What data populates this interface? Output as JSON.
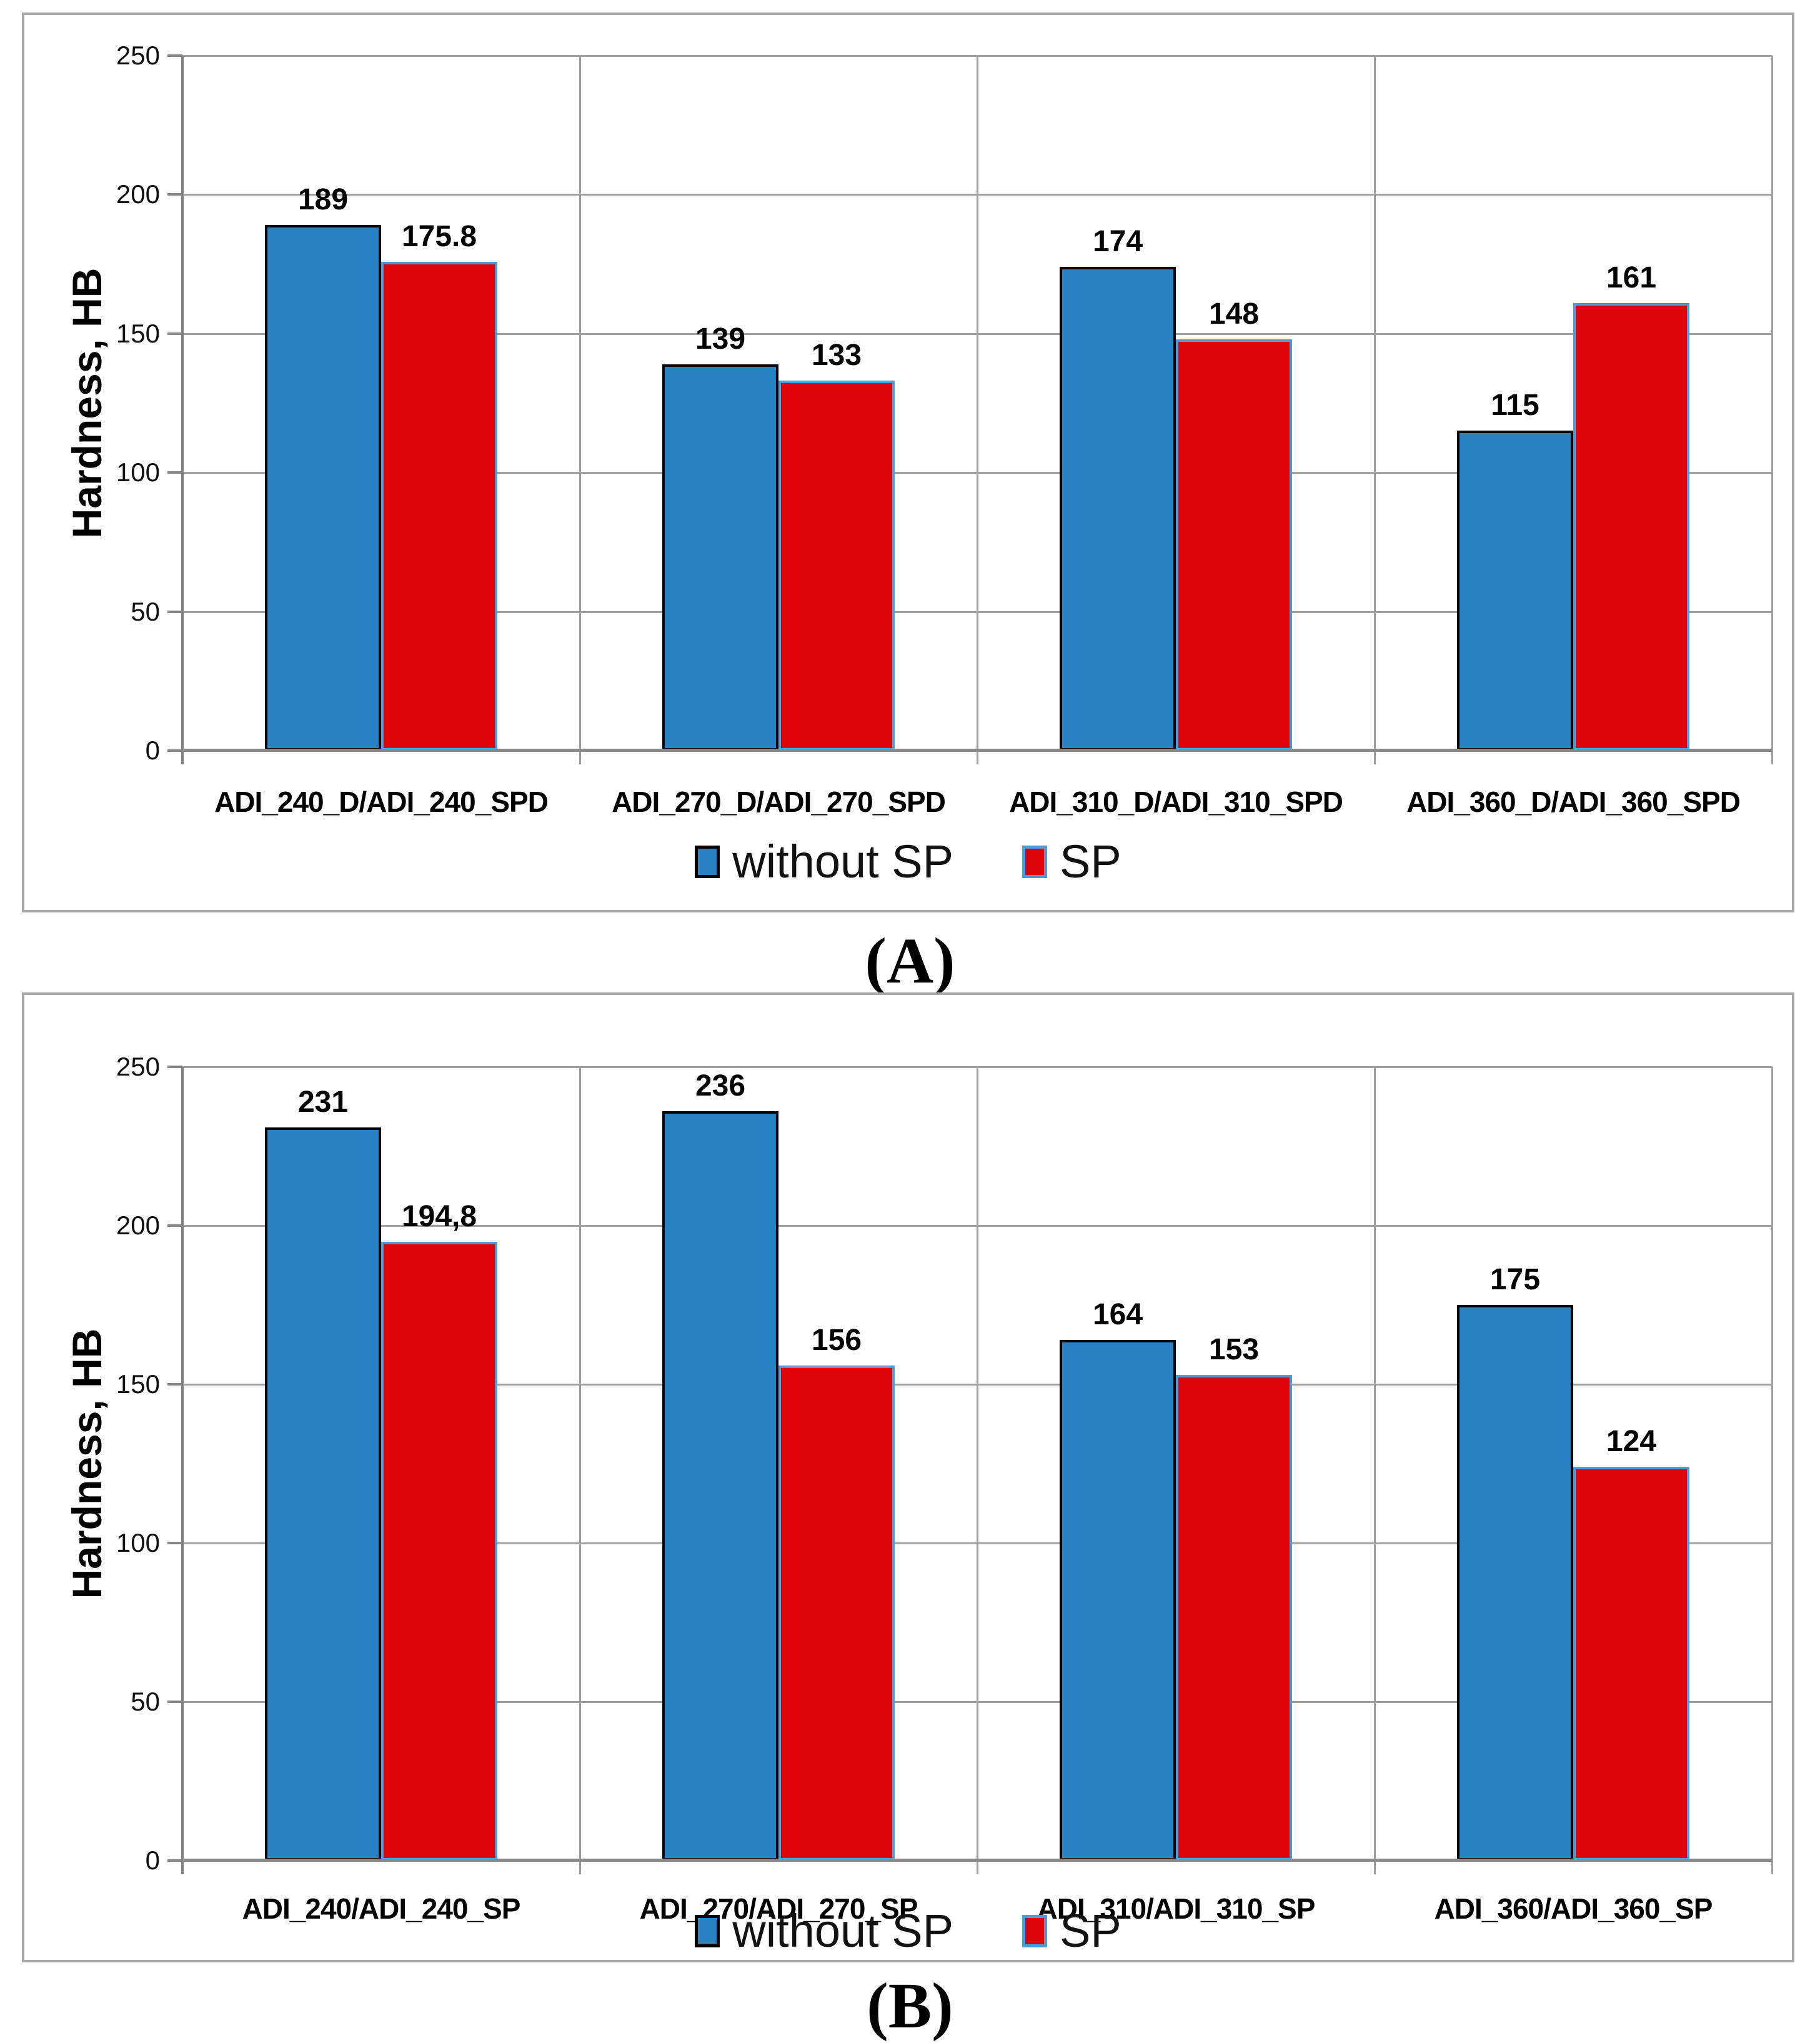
{
  "captions": {
    "a": "(A)",
    "b": "(B)"
  },
  "colors": {
    "blue_fill": "#2881c2",
    "red_fill": "#de0209",
    "blue_border": "#000000",
    "red_border": "#4f9bd8",
    "gridline": "#a0a0a0",
    "axis": "#898989",
    "panel_border": "#a9a9a9"
  },
  "chart_data": [
    {
      "type": "bar",
      "panel": "A",
      "title": "",
      "xlabel": "",
      "ylabel": "Hardness, HB",
      "ylim": [
        0,
        250
      ],
      "yticks": [
        0,
        50,
        100,
        150,
        200,
        250
      ],
      "grid": "horizontal gridlines and vertical category separators, gray",
      "legend_position": "bottom-center",
      "categories": [
        "ADI_240_D/ADI_240_SPD",
        "ADI_270_D/ADI_270_SPD",
        "ADI_310_D/ADI_310_SPD",
        "ADI_360_D/ADI_360_SPD"
      ],
      "series": [
        {
          "name": "without SP",
          "color_key": "blue",
          "values": [
            189,
            139,
            174,
            115
          ],
          "value_labels": [
            "189",
            "139",
            "174",
            "115"
          ]
        },
        {
          "name": "SP",
          "color_key": "red",
          "values": [
            175.8,
            133,
            148,
            161
          ],
          "value_labels": [
            "175.8",
            "133",
            "148",
            "161"
          ]
        }
      ]
    },
    {
      "type": "bar",
      "panel": "B",
      "title": "",
      "xlabel": "",
      "ylabel": "Hardness, HB",
      "ylim": [
        0,
        250
      ],
      "yticks": [
        0,
        50,
        100,
        150,
        200,
        250
      ],
      "grid": "horizontal gridlines and vertical category separators, gray",
      "legend_position": "bottom-center",
      "categories": [
        "ADI_240/ADI_240_SP",
        "ADI_270/ADI_270_SP",
        "ADI_310/ADI_310_SP",
        "ADI_360/ADI_360_SP"
      ],
      "series": [
        {
          "name": "without SP",
          "color_key": "blue",
          "values": [
            231,
            236,
            164,
            175
          ],
          "value_labels": [
            "231",
            "236",
            "164",
            "175"
          ]
        },
        {
          "name": "SP",
          "color_key": "red",
          "values": [
            194.8,
            156,
            153,
            124
          ],
          "value_labels": [
            "194,8",
            "156",
            "153",
            "124"
          ]
        }
      ]
    }
  ]
}
